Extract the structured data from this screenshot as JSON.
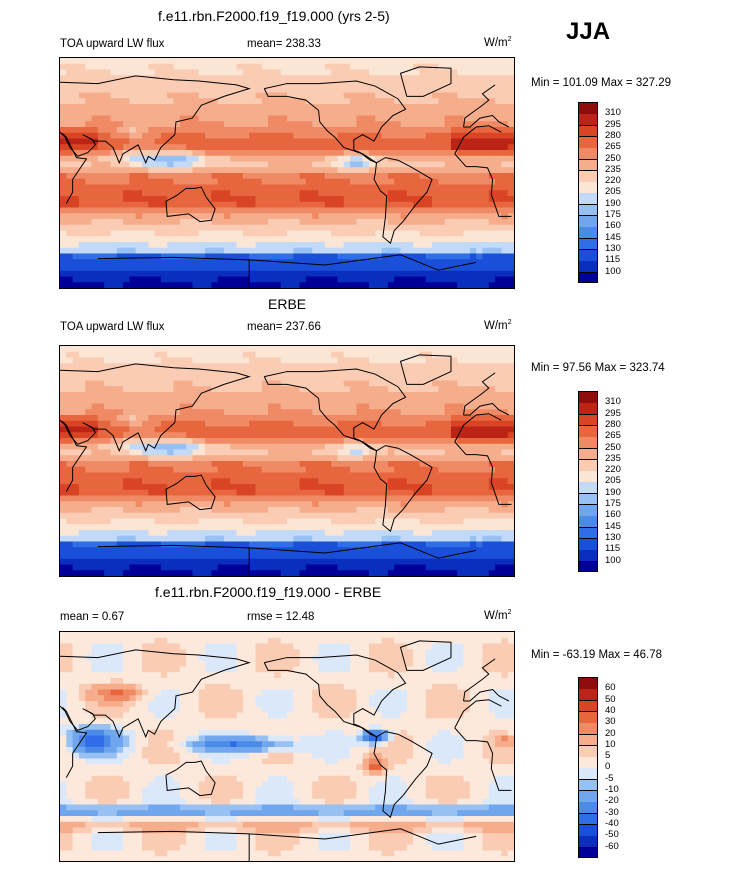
{
  "season": "JJA",
  "panels": [
    {
      "title": "f.e11.rbn.F2000.f19_f19.000 (yrs 2-5)",
      "left_label": "TOA upward LW flux",
      "center_label": "mean= 238.33",
      "units": "W/m",
      "units_sup": "2",
      "minmax": "Min = 101.09 Max = 327.29"
    },
    {
      "title": "ERBE",
      "left_label": "TOA upward LW flux",
      "center_label": "mean= 237.66",
      "units": "W/m",
      "units_sup": "2",
      "minmax": "Min =  97.56 Max = 323.74"
    },
    {
      "title": "f.e11.rbn.F2000.f19_f19.000 - ERBE",
      "left_label": "mean =   0.67",
      "center_label": "rmse =  12.48",
      "units": "W/m",
      "units_sup": "2",
      "minmax": "Min = -63.19 Max =  46.78"
    }
  ],
  "chart_data": [
    {
      "type": "heatmap",
      "title": "f.e11.rbn.F2000.f19_f19.000 (yrs 2-5)",
      "variable": "TOA upward LW flux",
      "mean": 238.33,
      "min": 101.09,
      "max": 327.29,
      "units": "W/m2",
      "colorbar_levels": [
        100,
        115,
        130,
        145,
        160,
        175,
        190,
        205,
        220,
        235,
        250,
        265,
        280,
        295,
        310
      ],
      "colorbar_colors": [
        "#000099",
        "#0a2fbf",
        "#1a4fd9",
        "#2f6ee6",
        "#4c8ae8",
        "#6fa6ee",
        "#97c1f2",
        "#c2daf7",
        "#fbe6d6",
        "#f9ccb3",
        "#f6ad8c",
        "#f08a64",
        "#e8663e",
        "#d94424",
        "#bd2417",
        "#8e0d0d"
      ]
    },
    {
      "type": "heatmap",
      "title": "ERBE",
      "variable": "TOA upward LW flux",
      "mean": 237.66,
      "min": 97.56,
      "max": 323.74,
      "units": "W/m2",
      "colorbar_levels": [
        100,
        115,
        130,
        145,
        160,
        175,
        190,
        205,
        220,
        235,
        250,
        265,
        280,
        295,
        310
      ],
      "colorbar_colors": [
        "#000099",
        "#0a2fbf",
        "#1a4fd9",
        "#2f6ee6",
        "#4c8ae8",
        "#6fa6ee",
        "#97c1f2",
        "#c2daf7",
        "#fbe6d6",
        "#f9ccb3",
        "#f6ad8c",
        "#f08a64",
        "#e8663e",
        "#d94424",
        "#bd2417",
        "#8e0d0d"
      ]
    },
    {
      "type": "heatmap",
      "title": "f.e11.rbn.F2000.f19_f19.000 - ERBE",
      "mean": 0.67,
      "rmse": 12.48,
      "min": -63.19,
      "max": 46.78,
      "units": "W/m2",
      "colorbar_levels": [
        -60,
        -50,
        -40,
        -30,
        -20,
        -10,
        -5,
        0,
        5,
        10,
        20,
        30,
        40,
        50,
        60
      ],
      "colorbar_colors": [
        "#000099",
        "#0a2fbf",
        "#1a4fd9",
        "#2f6ee6",
        "#4c8ae8",
        "#6fa6ee",
        "#97c1f2",
        "#dbe8fa",
        "#fde9dc",
        "#f9ccb3",
        "#f6ad8c",
        "#f08a64",
        "#e8663e",
        "#d94424",
        "#bd2417",
        "#8e0d0d"
      ]
    }
  ]
}
